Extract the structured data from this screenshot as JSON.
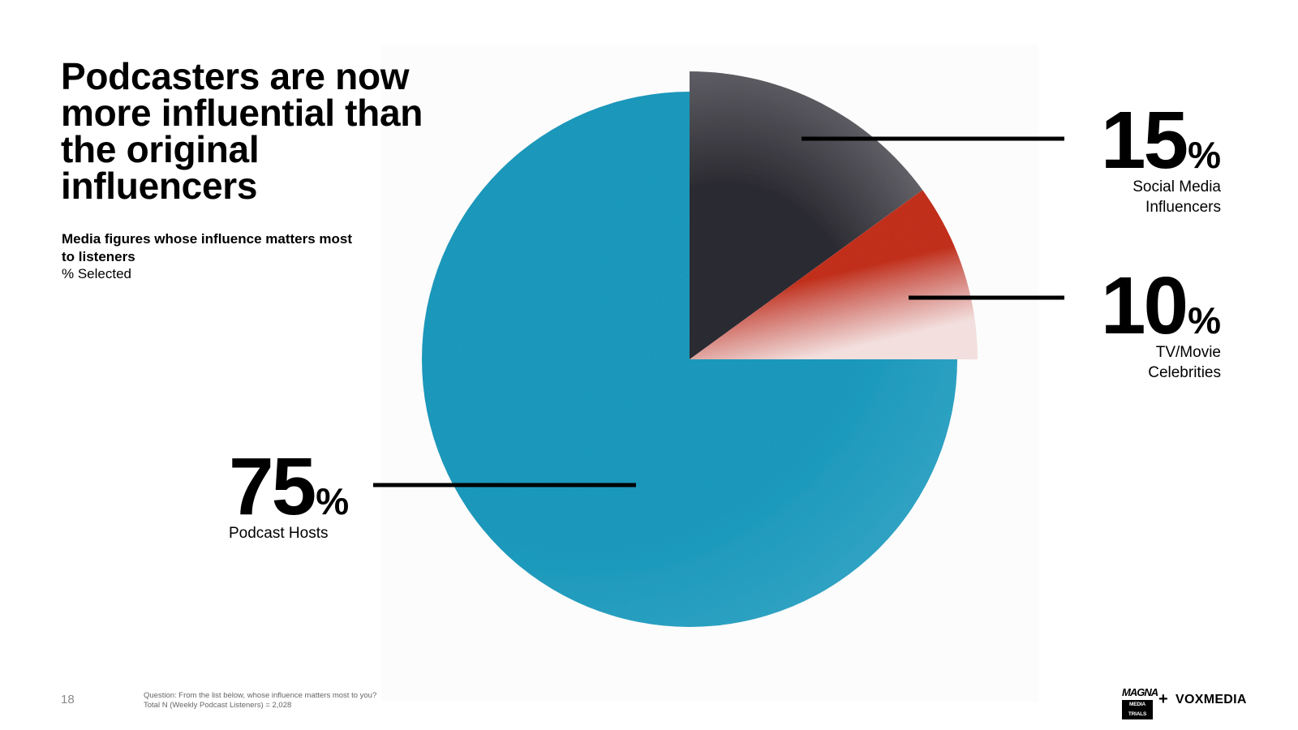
{
  "title": "Podcasters are now more influential than the original influencers",
  "subtitle": "Media figures whose influence matters most to listeners",
  "subnote": "% Selected",
  "page_number": "18",
  "footnote": {
    "question": "Question: From the list below, whose influence matters most to you?",
    "base": "Total N (Weekly Podcast Listeners) = 2,028"
  },
  "logos": {
    "magna_top": "MAGNA",
    "magna_bottom": "MEDIA TRIALS",
    "plus": "+",
    "vox": "VOXMEDIA"
  },
  "colors": {
    "social": "#2d2c33",
    "tv": "#c9321b",
    "podcast": "#1b9ec2",
    "leader": "#000000"
  },
  "callouts": {
    "social": {
      "value": "15",
      "unit": "%",
      "label_line1": "Social Media",
      "label_line2": "Influencers"
    },
    "tv": {
      "value": "10",
      "unit": "%",
      "label_line1": "TV/Movie",
      "label_line2": "Celebrities"
    },
    "podcast": {
      "value": "75",
      "unit": "%",
      "label_line1": "Podcast Hosts"
    }
  },
  "chart_data": {
    "type": "pie",
    "unit": "%",
    "slices": [
      {
        "name": "Social Media Influencers",
        "value": 15,
        "color": "#2d2c33",
        "exploded": true
      },
      {
        "name": "TV/Movie Celebrities",
        "value": 10,
        "color": "#c9321b",
        "exploded": true
      },
      {
        "name": "Podcast Hosts",
        "value": 75,
        "color": "#1b9ec2",
        "exploded": false
      }
    ],
    "start": "12 o'clock, clockwise"
  }
}
